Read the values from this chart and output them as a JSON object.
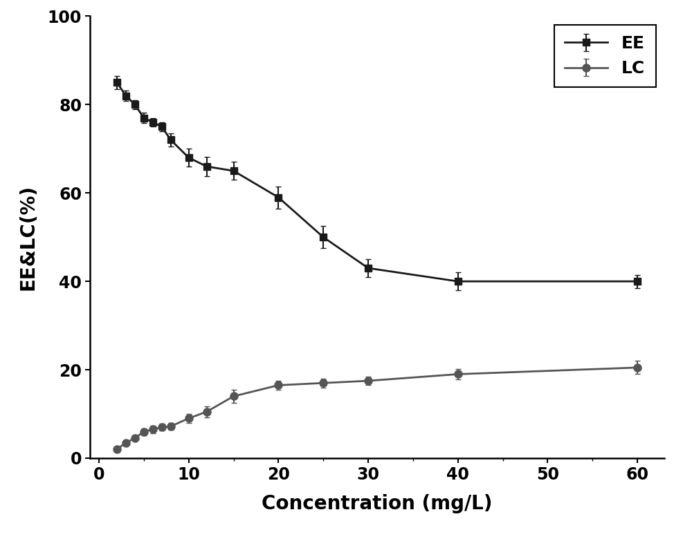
{
  "EE_x": [
    2,
    3,
    4,
    5,
    6,
    7,
    8,
    10,
    12,
    15,
    20,
    25,
    30,
    40,
    60
  ],
  "EE_y": [
    85,
    82,
    80,
    77,
    76,
    75,
    72,
    68,
    66,
    65,
    59,
    50,
    43,
    40,
    40
  ],
  "EE_err": [
    1.5,
    1.2,
    1.0,
    1.2,
    1.0,
    1.0,
    1.5,
    2.0,
    2.2,
    2.0,
    2.5,
    2.5,
    2.0,
    2.0,
    1.5
  ],
  "LC_x": [
    2,
    3,
    4,
    5,
    6,
    7,
    8,
    10,
    12,
    15,
    20,
    25,
    30,
    40,
    60
  ],
  "LC_y": [
    2,
    3.5,
    4.5,
    6.0,
    6.5,
    7.0,
    7.2,
    9.0,
    10.5,
    14.0,
    16.5,
    17.0,
    17.5,
    19.0,
    20.5
  ],
  "LC_err": [
    0.5,
    0.4,
    0.5,
    0.8,
    0.8,
    0.8,
    0.8,
    1.0,
    1.2,
    1.5,
    1.0,
    1.0,
    1.0,
    1.2,
    1.5
  ],
  "EE_color": "#1a1a1a",
  "LC_color": "#555555",
  "xlabel": "Concentration (mg/L)",
  "ylabel": "EE&LC(%)",
  "xlim": [
    -1,
    63
  ],
  "ylim": [
    0,
    100
  ],
  "xticks": [
    0,
    10,
    20,
    30,
    40,
    50,
    60
  ],
  "yticks": [
    0,
    20,
    40,
    60,
    80,
    100
  ],
  "legend_labels": [
    "EE",
    "LC"
  ],
  "axis_fontsize": 20,
  "tick_fontsize": 17,
  "legend_fontsize": 18,
  "linewidth": 2.0,
  "markersize_EE": 7,
  "markersize_LC": 8,
  "capsize": 3,
  "elinewidth": 1.5
}
